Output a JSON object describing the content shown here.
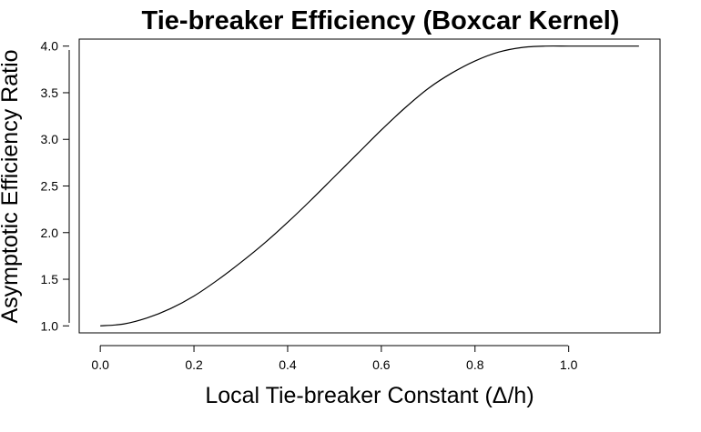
{
  "chart_data": {
    "type": "line",
    "title": "Tie-breaker Efficiency (Boxcar Kernel)",
    "xlabel": "Local Tie-breaker Constant (Δ/h)",
    "ylabel": "Asymptotic Efficiency Ratio",
    "xlim": [
      -0.045,
      1.195
    ],
    "ylim": [
      0.925,
      4.075
    ],
    "x_ticks": [
      0.0,
      0.2,
      0.4,
      0.6,
      0.8,
      1.0
    ],
    "x_tick_labels": [
      "0.0",
      "0.2",
      "0.4",
      "0.6",
      "0.8",
      "1.0"
    ],
    "y_ticks": [
      1.0,
      1.5,
      2.0,
      2.5,
      3.0,
      3.5,
      4.0
    ],
    "y_tick_labels": [
      "1.0",
      "1.5",
      "2.0",
      "2.5",
      "3.0",
      "3.5",
      "4.0"
    ],
    "grid": false,
    "legend": "none",
    "series": [
      {
        "color": "#000000",
        "x": [
          0.0,
          0.05,
          0.1,
          0.15,
          0.2,
          0.25,
          0.3,
          0.35,
          0.4,
          0.45,
          0.5,
          0.55,
          0.6,
          0.65,
          0.7,
          0.75,
          0.8,
          0.85,
          0.9,
          0.95,
          1.0,
          1.05,
          1.1,
          1.15
        ],
        "y": [
          1.0,
          1.02,
          1.085,
          1.185,
          1.32,
          1.49,
          1.68,
          1.885,
          2.11,
          2.35,
          2.6,
          2.85,
          3.1,
          3.335,
          3.545,
          3.71,
          3.84,
          3.935,
          3.985,
          4.0,
          4.0,
          4.0,
          4.0,
          4.0
        ]
      }
    ]
  }
}
